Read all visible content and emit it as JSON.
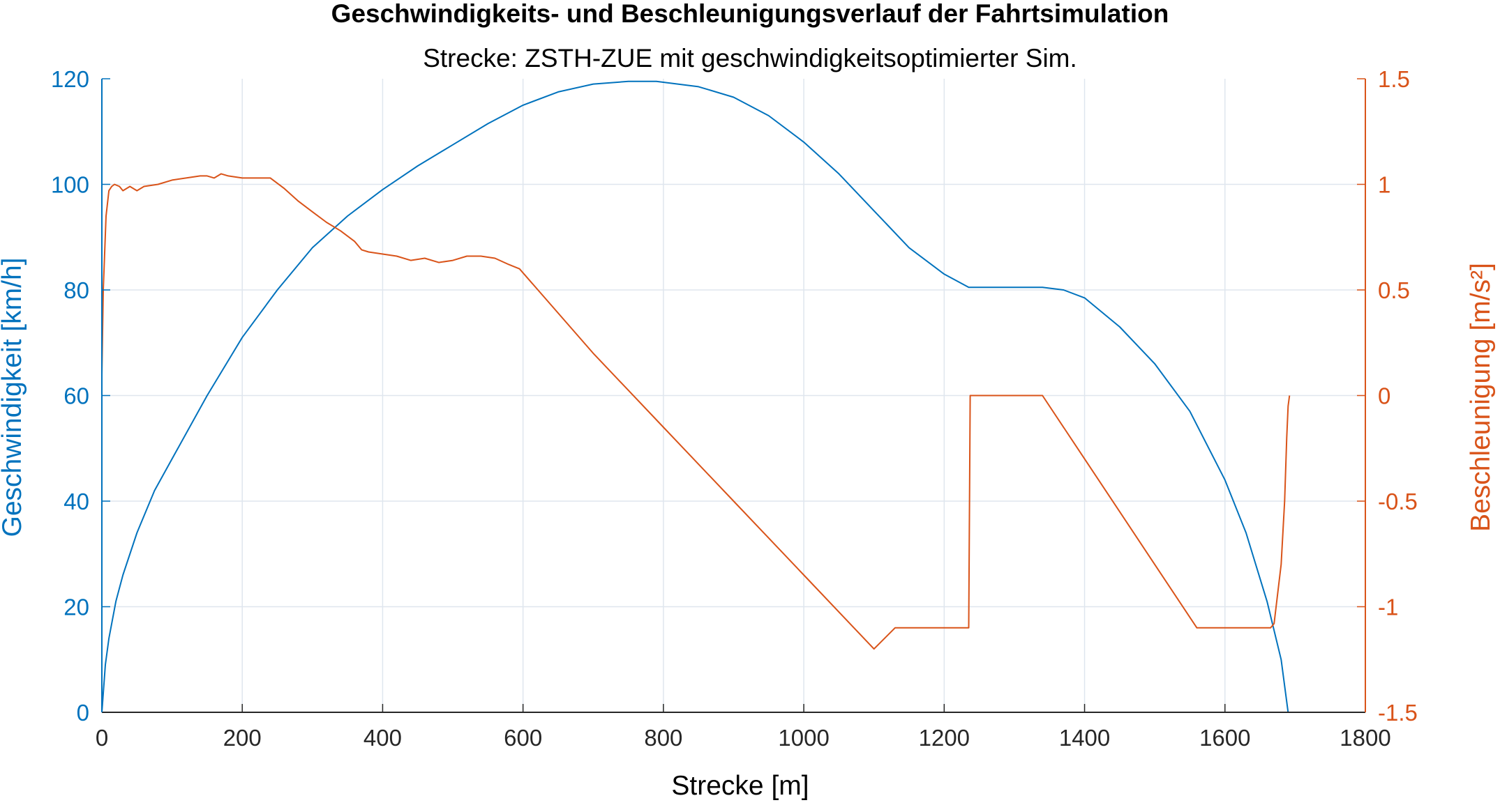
{
  "chart_data": {
    "type": "line",
    "title": "Geschwindigkeits- und Beschleunigungsverlauf der Fahrtsimulation",
    "subtitle": "Strecke: ZSTH-ZUE mit geschwindigkeitsoptimierter Sim.",
    "xlabel": "Strecke [m]",
    "ylabel_left": "Geschwindigkeit [km/h]",
    "ylabel_right": "Beschleunigung [m/s²]",
    "xlim": [
      0,
      1800
    ],
    "ylim_left": [
      0,
      120
    ],
    "ylim_right": [
      -1.5,
      1.5
    ],
    "x_ticks": [
      "0",
      "200",
      "400",
      "600",
      "800",
      "1000",
      "1200",
      "1400",
      "1600",
      "1800"
    ],
    "y_left_ticks": [
      "0",
      "20",
      "40",
      "60",
      "80",
      "100",
      "120"
    ],
    "y_right_ticks": [
      "-1.5",
      "-1",
      "-0.5",
      "0",
      "0.5",
      "1",
      "1.5"
    ],
    "grid": true,
    "colors": {
      "speed": "#0072BD",
      "accel": "#D95319",
      "grid": "#dfe6ee"
    },
    "series": [
      {
        "name": "Geschwindigkeit",
        "axis": "left",
        "x": [
          0,
          5,
          10,
          20,
          30,
          50,
          75,
          100,
          150,
          200,
          250,
          300,
          350,
          400,
          450,
          500,
          550,
          600,
          650,
          700,
          750,
          790,
          850,
          900,
          950,
          1000,
          1050,
          1100,
          1150,
          1200,
          1235,
          1250,
          1300,
          1340,
          1370,
          1400,
          1450,
          1500,
          1550,
          1600,
          1630,
          1660,
          1680,
          1690
        ],
        "y": [
          0,
          9,
          14,
          21,
          26,
          34,
          42,
          48,
          60,
          71,
          80,
          88,
          94,
          99,
          103.5,
          107.5,
          111.5,
          115,
          117.5,
          119,
          119.5,
          119.5,
          118.5,
          116.5,
          113,
          108,
          102,
          95,
          88,
          83,
          80.5,
          80.5,
          80.5,
          80.5,
          80,
          78.5,
          73,
          66,
          57,
          44,
          34,
          21,
          10,
          0
        ]
      },
      {
        "name": "Beschleunigung",
        "axis": "right",
        "x": [
          0,
          2,
          6,
          10,
          14,
          18,
          25,
          30,
          40,
          50,
          60,
          80,
          100,
          120,
          140,
          150,
          160,
          170,
          180,
          200,
          220,
          240,
          260,
          280,
          300,
          320,
          340,
          360,
          370,
          380,
          400,
          420,
          440,
          460,
          480,
          500,
          520,
          540,
          560,
          580,
          595,
          700,
          800,
          900,
          1000,
          1100,
          1130,
          1235,
          1237,
          1240,
          1340,
          1450,
          1560,
          1565,
          1665,
          1670,
          1680,
          1685,
          1688,
          1690,
          1692
        ],
        "y": [
          0.1,
          0.5,
          0.85,
          0.97,
          0.99,
          1.0,
          0.99,
          0.97,
          0.99,
          0.97,
          0.99,
          1.0,
          1.02,
          1.03,
          1.04,
          1.04,
          1.03,
          1.05,
          1.04,
          1.03,
          1.03,
          1.03,
          0.98,
          0.92,
          0.87,
          0.82,
          0.78,
          0.73,
          0.69,
          0.68,
          0.67,
          0.66,
          0.64,
          0.65,
          0.63,
          0.64,
          0.66,
          0.66,
          0.65,
          0.62,
          0.6,
          0.2,
          -0.15,
          -0.5,
          -0.85,
          -1.2,
          -1.1,
          -1.1,
          0.0,
          0.0,
          0.0,
          -0.55,
          -1.1,
          -1.1,
          -1.1,
          -1.08,
          -0.8,
          -0.5,
          -0.2,
          -0.05,
          0.0
        ]
      }
    ]
  }
}
